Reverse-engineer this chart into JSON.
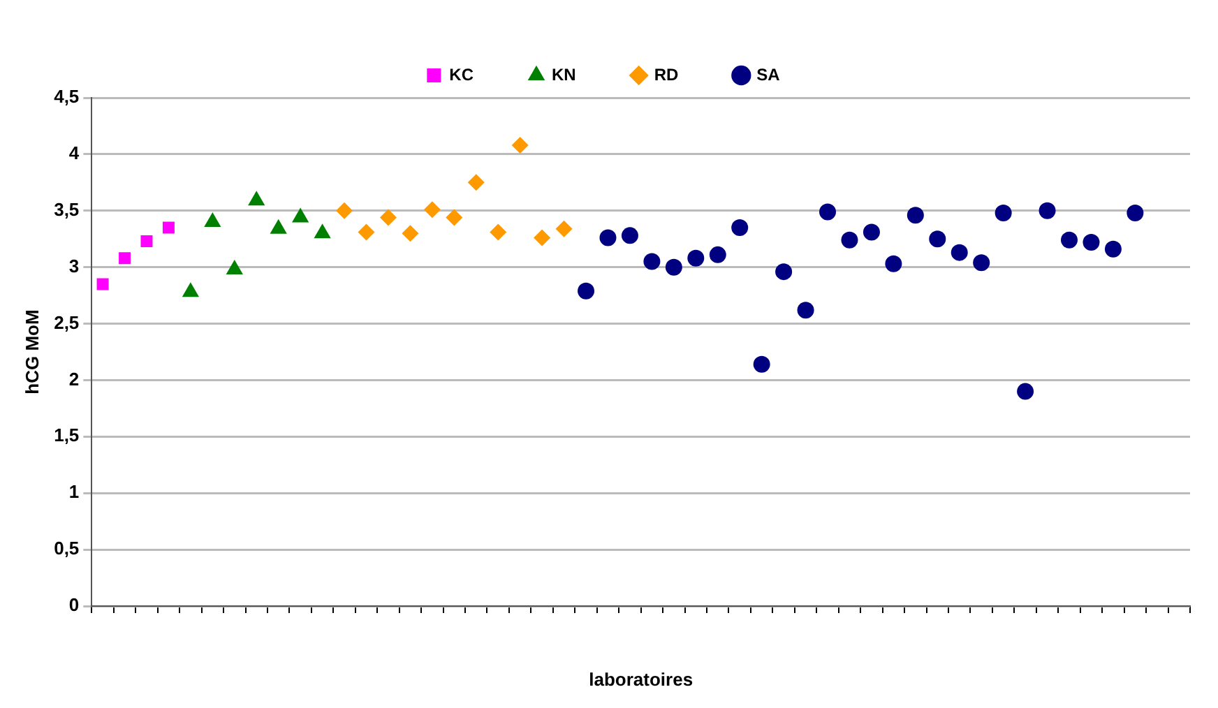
{
  "chart_data": {
    "type": "scatter",
    "xlabel": "laboratoires",
    "ylabel": "hCG MoM",
    "categories": [
      null,
      null,
      null,
      null,
      null,
      null,
      null,
      null,
      null,
      null,
      null,
      null,
      null,
      null,
      null,
      null,
      null,
      null,
      null,
      null,
      null,
      null,
      null,
      null,
      null,
      null,
      null,
      null,
      null,
      null,
      null,
      null,
      null,
      null,
      null,
      null,
      null,
      null,
      null,
      null,
      null,
      null,
      null,
      null,
      null,
      null,
      null,
      null,
      null,
      null
    ],
    "series": [
      {
        "name": "KC",
        "color": "#ff00ff",
        "marker": "square",
        "values": [
          2.85,
          3.08,
          3.23,
          3.35,
          null,
          null,
          null,
          null,
          null,
          null,
          null,
          null,
          null,
          null,
          null,
          null,
          null,
          null,
          null,
          null,
          null,
          null,
          null,
          null,
          null,
          null,
          null,
          null,
          null,
          null,
          null,
          null,
          null,
          null,
          null,
          null,
          null,
          null,
          null,
          null,
          null,
          null,
          null,
          null,
          null,
          null,
          null,
          null,
          null,
          null
        ]
      },
      {
        "name": "KN",
        "color": "#008000",
        "marker": "triangle",
        "values": [
          null,
          null,
          null,
          null,
          2.78,
          3.4,
          2.98,
          3.59,
          3.34,
          3.44,
          3.3,
          null,
          null,
          null,
          null,
          null,
          null,
          null,
          null,
          null,
          null,
          null,
          null,
          null,
          null,
          null,
          null,
          null,
          null,
          null,
          null,
          null,
          null,
          null,
          null,
          null,
          null,
          null,
          null,
          null,
          null,
          null,
          null,
          null,
          null,
          null,
          null,
          null,
          null,
          null
        ]
      },
      {
        "name": "RD",
        "color": "#ff9900",
        "marker": "diamond",
        "values": [
          null,
          null,
          null,
          null,
          null,
          null,
          null,
          null,
          null,
          null,
          null,
          3.5,
          3.31,
          3.44,
          3.3,
          3.51,
          3.44,
          3.75,
          3.31,
          4.08,
          3.26,
          3.34,
          null,
          null,
          null,
          null,
          null,
          null,
          null,
          null,
          null,
          null,
          null,
          null,
          null,
          null,
          null,
          null,
          null,
          null,
          null,
          null,
          null,
          null,
          null,
          null,
          null,
          null,
          null,
          null
        ]
      },
      {
        "name": "SA",
        "color": "#000080",
        "marker": "circle",
        "values": [
          null,
          null,
          null,
          null,
          null,
          null,
          null,
          null,
          null,
          null,
          null,
          null,
          null,
          null,
          null,
          null,
          null,
          null,
          null,
          null,
          null,
          null,
          2.79,
          3.26,
          3.28,
          3.05,
          3.0,
          3.08,
          3.11,
          3.35,
          2.14,
          2.96,
          2.62,
          3.49,
          3.24,
          3.31,
          3.03,
          3.46,
          3.25,
          3.13,
          3.04,
          3.48,
          1.9,
          3.5,
          3.24,
          3.22,
          3.16,
          3.48,
          null,
          null
        ]
      }
    ],
    "ylim": [
      0,
      4.5
    ],
    "yticks": [
      0,
      {
        "value": 0.5,
        "label": "0,5"
      },
      1,
      {
        "value": 1.5,
        "label": "1,5"
      },
      2,
      {
        "value": 2.5,
        "label": "2,5"
      },
      3,
      {
        "value": 3.5,
        "label": "3,5"
      },
      4,
      {
        "value": 4.5,
        "label": "4,5"
      }
    ],
    "grid": "y",
    "legend": "top"
  }
}
